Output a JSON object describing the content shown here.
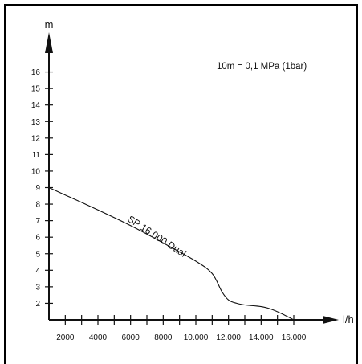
{
  "chart_data": {
    "type": "line",
    "title": "",
    "xlabel": "l/h",
    "ylabel": "m",
    "annotation": "10m = 0,1 MPa (1bar)",
    "xlim": [
      1000,
      16000
    ],
    "ylim": [
      1,
      17
    ],
    "x_ticks": [
      2000,
      4000,
      6000,
      8000,
      10000,
      12000,
      14000,
      16000
    ],
    "x_tick_labels": [
      "2000",
      "4000",
      "6000",
      "8000",
      "10.000",
      "12.000",
      "14.000",
      "16.000"
    ],
    "x_minor_ticks": [
      3000,
      5000,
      7000,
      9000,
      11000,
      13000,
      15000
    ],
    "y_ticks": [
      2,
      3,
      4,
      5,
      6,
      7,
      8,
      9,
      10,
      11,
      12,
      13,
      14,
      15,
      16
    ],
    "y_tick_labels": [
      "2",
      "3",
      "4",
      "5",
      "6",
      "7",
      "8",
      "9",
      "10",
      "11",
      "12",
      "13",
      "14",
      "15",
      "16"
    ],
    "grid": false,
    "legend": "none",
    "series": [
      {
        "name": "SP 16.000 Dual",
        "color": "#111111",
        "x": [
          1000,
          2000,
          4000,
          6000,
          8000,
          10000,
          11000,
          11600,
          12000,
          12500,
          13000,
          14000,
          14600,
          15200,
          16000
        ],
        "y": [
          9.0,
          8.55,
          7.65,
          6.7,
          5.65,
          4.55,
          3.8,
          2.7,
          2.2,
          2.0,
          1.9,
          1.8,
          1.65,
          1.4,
          1.0
        ]
      }
    ],
    "colors": {
      "frame": "#000000",
      "axis": "#111111"
    }
  }
}
